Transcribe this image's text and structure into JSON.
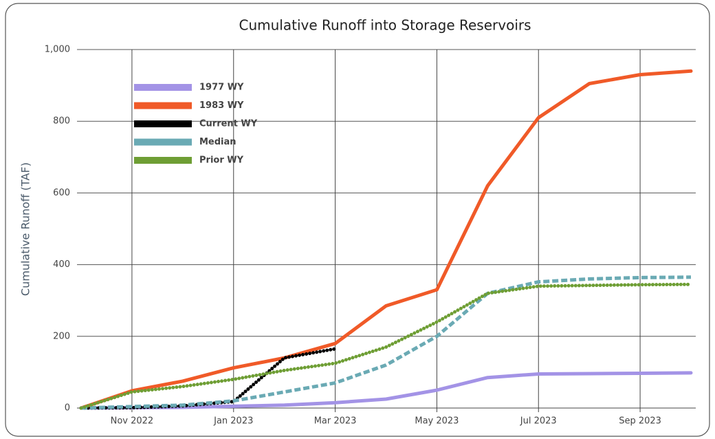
{
  "chart_data": {
    "type": "line",
    "title": "Cumulative Runoff into Storage Reservoirs",
    "y_label": "Cumulative Runoff (TAF)",
    "x": [
      "2022-10",
      "2022-11",
      "2022-12",
      "2023-01",
      "2023-02",
      "2023-03",
      "2023-04",
      "2023-05",
      "2023-06",
      "2023-07",
      "2023-08",
      "2023-09",
      "2023-10"
    ],
    "xlim": [
      "2022-10",
      "2023-10"
    ],
    "xticks": [
      {
        "value": "2022-11",
        "label": "Nov 2022"
      },
      {
        "value": "2023-01",
        "label": "Jan 2023"
      },
      {
        "value": "2023-03",
        "label": "Mar 2023"
      },
      {
        "value": "2023-05",
        "label": "May 2023"
      },
      {
        "value": "2023-07",
        "label": "Jul 2023"
      },
      {
        "value": "2023-09",
        "label": "Sep 2023"
      }
    ],
    "ylim": [
      0,
      1000
    ],
    "yticks": [
      0,
      200,
      400,
      600,
      800,
      {
        "value": 1000,
        "label": "1,000"
      }
    ],
    "grid": true,
    "legend": "top-left",
    "series": [
      {
        "name": "1977 WY",
        "color": "#a393e6",
        "style": "solid",
        "values": [
          0,
          1,
          2,
          5,
          8,
          15,
          25,
          50,
          85,
          95,
          96,
          97,
          98
        ]
      },
      {
        "name": "1983 WY",
        "color": "#f05a28",
        "style": "solid",
        "values": [
          0,
          48,
          75,
          112,
          140,
          180,
          285,
          330,
          620,
          810,
          905,
          930,
          940
        ]
      },
      {
        "name": "Current WY",
        "color": "#000000",
        "style": "dotted",
        "values": [
          0,
          1,
          6,
          18,
          140,
          165,
          null,
          null,
          null,
          null,
          null,
          null,
          null
        ]
      },
      {
        "name": "Median",
        "color": "#6aaab4",
        "style": "dashed",
        "values": [
          0,
          4,
          8,
          20,
          45,
          70,
          120,
          200,
          320,
          352,
          360,
          364,
          365
        ]
      },
      {
        "name": "Prior WY",
        "color": "#6e9e34",
        "style": "dotted",
        "values": [
          0,
          45,
          60,
          80,
          105,
          125,
          170,
          240,
          320,
          340,
          342,
          344,
          345
        ]
      }
    ]
  }
}
